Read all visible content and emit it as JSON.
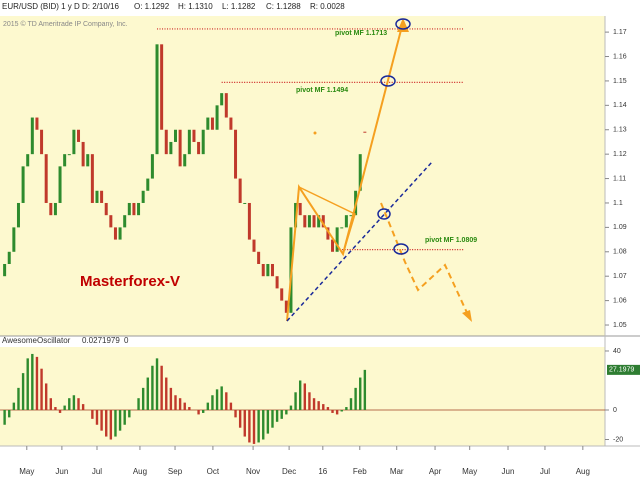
{
  "header": {
    "symbol": "EUR/USD (BID) 1 y D",
    "date": "D: 2/10/16",
    "open": "O: 1.1292",
    "high": "H: 1.1310",
    "low": "L: 1.1282",
    "close": "C: 1.1288",
    "range": "R: 0.0028",
    "copyright": "2015 © TD Ameritrade IP Company, Inc.",
    "brand": "Masterforex-V"
  },
  "chart_data": [
    {
      "type": "candlestick",
      "up_color": "#2e8b2e",
      "down_color": "#c0392b",
      "xlim": [
        -1,
        130
      ],
      "xticks": [
        {
          "value": 4.8,
          "label": "May"
        },
        {
          "value": 12.4,
          "label": "Jun"
        },
        {
          "value": 20,
          "label": "Jul"
        },
        {
          "value": 29.3,
          "label": "Aug"
        },
        {
          "value": 36.9,
          "label": "Sep"
        },
        {
          "value": 45.1,
          "label": "Oct"
        },
        {
          "value": 53.8,
          "label": "Nov"
        },
        {
          "value": 61.6,
          "label": "Dec"
        },
        {
          "value": 68.9,
          "label": "16"
        },
        {
          "value": 76.9,
          "label": "Feb"
        },
        {
          "value": 84.9,
          "label": "Mar"
        },
        {
          "value": 93.2,
          "label": "Apr"
        },
        {
          "value": 100.7,
          "label": "May"
        },
        {
          "value": 109,
          "label": "Jun"
        },
        {
          "value": 117,
          "label": "Jul"
        },
        {
          "value": 125.2,
          "label": "Aug"
        }
      ],
      "ylim": [
        1.0455,
        1.1766
      ],
      "yticks": [
        1.05,
        1.06,
        1.07,
        1.08,
        1.09,
        1.1,
        1.11,
        1.12,
        1.13,
        1.14,
        1.15,
        1.16,
        1.17
      ],
      "open": [
        1.07,
        1.075,
        1.08,
        1.09,
        1.1,
        1.115,
        1.12,
        1.135,
        1.13,
        1.12,
        1.1,
        1.095,
        1.1,
        1.115,
        1.12,
        1.12,
        1.13,
        1.125,
        1.115,
        1.12,
        1.1,
        1.105,
        1.1,
        1.095,
        1.09,
        1.085,
        1.09,
        1.095,
        1.1,
        1.095,
        1.1,
        1.105,
        1.11,
        1.12,
        1.165,
        1.13,
        1.12,
        1.125,
        1.13,
        1.115,
        1.12,
        1.13,
        1.125,
        1.12,
        1.13,
        1.135,
        1.13,
        1.14,
        1.145,
        1.135,
        1.13,
        1.11,
        1.1,
        1.1,
        1.085,
        1.08,
        1.075,
        1.07,
        1.075,
        1.07,
        1.065,
        1.06,
        1.055,
        1.09,
        1.1,
        1.095,
        1.09,
        1.095,
        1.09,
        1.095,
        1.09,
        1.085,
        1.08,
        1.09,
        1.09,
        1.095,
        1.095,
        1.105,
        1.1292
      ],
      "close": [
        1.075,
        1.08,
        1.09,
        1.1,
        1.115,
        1.12,
        1.135,
        1.13,
        1.12,
        1.1,
        1.095,
        1.1,
        1.115,
        1.12,
        1.12,
        1.13,
        1.125,
        1.115,
        1.12,
        1.1,
        1.105,
        1.1,
        1.095,
        1.09,
        1.085,
        1.09,
        1.095,
        1.1,
        1.095,
        1.1,
        1.105,
        1.11,
        1.12,
        1.165,
        1.13,
        1.12,
        1.125,
        1.13,
        1.115,
        1.12,
        1.13,
        1.125,
        1.12,
        1.13,
        1.135,
        1.13,
        1.14,
        1.145,
        1.135,
        1.13,
        1.11,
        1.1,
        1.1,
        1.085,
        1.08,
        1.075,
        1.07,
        1.075,
        1.07,
        1.065,
        1.06,
        1.055,
        1.09,
        1.1,
        1.095,
        1.09,
        1.095,
        1.09,
        1.095,
        1.09,
        1.085,
        1.08,
        1.09,
        1.09,
        1.095,
        1.095,
        1.105,
        1.12,
        1.1288
      ],
      "pivots": [
        {
          "value": 1.1713,
          "label": "pivot MF 1.1713",
          "start": 33
        },
        {
          "value": 1.1494,
          "label": "pivot MF 1.1494",
          "start": 47
        },
        {
          "value": 1.0809,
          "label": "pivot MF 1.0809",
          "start": 72
        }
      ],
      "pivot_end": 99.5,
      "pivot_color": "#cc2020"
    },
    {
      "type": "bar",
      "title": "AwesomeOscillator",
      "readouts": [
        "0.0271979",
        "0"
      ],
      "up_color": "#2e8b2e",
      "down_color": "#c0392b",
      "ylim": [
        -24.4,
        42.7
      ],
      "yticks": [
        -20,
        0,
        40
      ],
      "values": [
        -10,
        -5,
        5,
        15,
        25,
        35,
        38,
        36,
        28,
        18,
        8,
        2,
        -2,
        3,
        8,
        10,
        8,
        4,
        0,
        -6,
        -10,
        -14,
        -18,
        -20,
        -18,
        -14,
        -10,
        -5,
        0,
        8,
        15,
        22,
        30,
        35,
        30,
        22,
        15,
        10,
        8,
        5,
        2,
        0,
        -3,
        -2,
        5,
        10,
        14,
        16,
        12,
        5,
        -5,
        -12,
        -18,
        -22,
        -23,
        -22,
        -20,
        -16,
        -12,
        -8,
        -6,
        -3,
        3,
        12,
        20,
        18,
        12,
        8,
        6,
        4,
        2,
        -2,
        -3,
        -1,
        2,
        8,
        15,
        22,
        27.1979
      ]
    }
  ]
}
